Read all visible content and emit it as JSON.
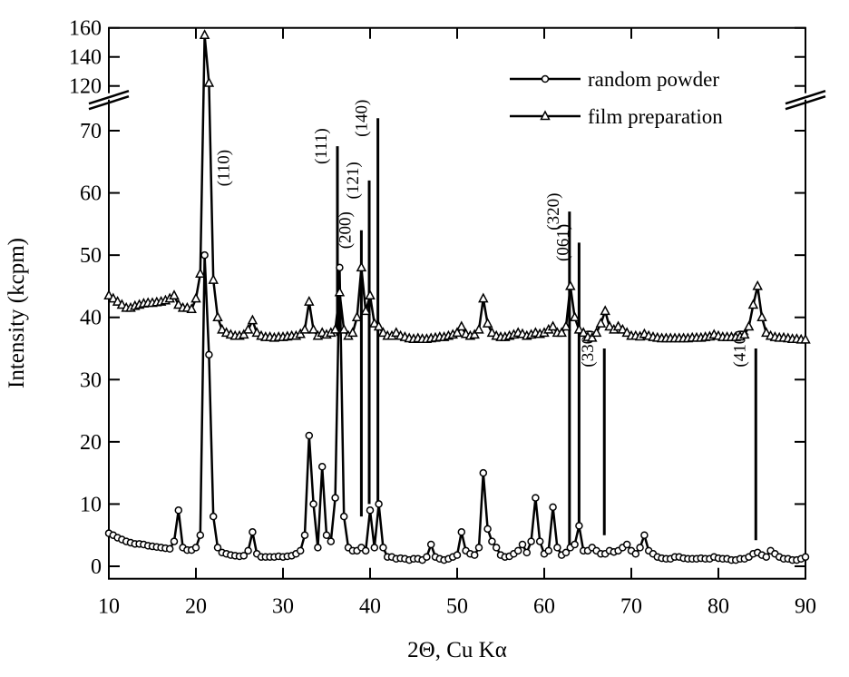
{
  "chart_data": {
    "type": "line",
    "xlabel": "2Θ, Cu Kα",
    "ylabel": "Intensity (kcpm)",
    "xlim": [
      10,
      90
    ],
    "xticks": [
      10,
      20,
      30,
      40,
      50,
      60,
      70,
      80,
      90
    ],
    "ylim": [
      -2,
      160
    ],
    "ybreak": [
      75,
      115
    ],
    "yticks": [
      0,
      10,
      20,
      30,
      40,
      50,
      60,
      70,
      120,
      140,
      160
    ],
    "legend": "upper right",
    "x": [
      10,
      10.5,
      11,
      11.5,
      12,
      12.5,
      13,
      13.5,
      14,
      14.5,
      15,
      15.5,
      16,
      16.5,
      17,
      17.5,
      18,
      18.5,
      19,
      19.5,
      20,
      20.5,
      21,
      21.5,
      22,
      22.5,
      23,
      23.5,
      24,
      24.5,
      25,
      25.5,
      26,
      26.5,
      27,
      27.5,
      28,
      28.5,
      29,
      29.5,
      30,
      30.5,
      31,
      31.5,
      32,
      32.5,
      33,
      33.5,
      34,
      34.5,
      35,
      35.5,
      36,
      36.5,
      37,
      37.5,
      38,
      38.5,
      39,
      39.5,
      40,
      40.5,
      41,
      41.5,
      42,
      42.5,
      43,
      43.5,
      44,
      44.5,
      45,
      45.5,
      46,
      46.5,
      47,
      47.5,
      48,
      48.5,
      49,
      49.5,
      50,
      50.5,
      51,
      51.5,
      52,
      52.5,
      53,
      53.5,
      54,
      54.5,
      55,
      55.5,
      56,
      56.5,
      57,
      57.5,
      58,
      58.5,
      59,
      59.5,
      60,
      60.5,
      61,
      61.5,
      62,
      62.5,
      63,
      63.5,
      64,
      64.5,
      65,
      65.5,
      66,
      66.5,
      67,
      67.5,
      68,
      68.5,
      69,
      69.5,
      70,
      70.5,
      71,
      71.5,
      72,
      72.5,
      73,
      73.5,
      74,
      74.5,
      75,
      75.5,
      76,
      76.5,
      77,
      77.5,
      78,
      78.5,
      79,
      79.5,
      80,
      80.5,
      81,
      81.5,
      82,
      82.5,
      83,
      83.5,
      84,
      84.5,
      85,
      85.5,
      86,
      86.5,
      87,
      87.5,
      88,
      88.5,
      89,
      89.5,
      90
    ],
    "series": [
      {
        "name": "random powder",
        "color": "#000000",
        "marker": "circle",
        "values": [
          5.3,
          5,
          4.6,
          4.3,
          4,
          3.8,
          3.6,
          3.6,
          3.5,
          3.3,
          3.2,
          3.1,
          3,
          2.9,
          2.8,
          4,
          9,
          3,
          2.6,
          2.6,
          3,
          5,
          50,
          34,
          8,
          3,
          2.2,
          2,
          1.8,
          1.7,
          1.6,
          1.7,
          2.5,
          5.5,
          2,
          1.5,
          1.5,
          1.5,
          1.5,
          1.6,
          1.5,
          1.6,
          1.7,
          2,
          2.5,
          5,
          21,
          10,
          3,
          16,
          5,
          4,
          11,
          48,
          8,
          3,
          2.5,
          2.5,
          3,
          2.5,
          9,
          3,
          10,
          3,
          1.5,
          1.5,
          1.2,
          1.3,
          1.2,
          1,
          1.2,
          1.2,
          1,
          1.5,
          3.5,
          1.5,
          1.2,
          1,
          1.2,
          1.5,
          1.8,
          5.5,
          2.5,
          2,
          1.8,
          3,
          15,
          6,
          4,
          3,
          1.8,
          1.5,
          1.6,
          2,
          2.5,
          3.5,
          2.2,
          4,
          11,
          4,
          2,
          2.5,
          9.5,
          3,
          1.8,
          2.2,
          3,
          3.5,
          6.5,
          2.5,
          2.5,
          3,
          2.5,
          2,
          2,
          2.5,
          2.3,
          2.5,
          3,
          3.5,
          2.5,
          2,
          3,
          5,
          2.5,
          2,
          1.5,
          1.3,
          1.2,
          1.2,
          1.5,
          1.5,
          1.3,
          1.2,
          1.2,
          1.2,
          1.3,
          1.2,
          1.2,
          1.5,
          1.3,
          1.2,
          1.2,
          1,
          1,
          1.2,
          1.2,
          1.5,
          2,
          2.2,
          1.8,
          1.5,
          2.5,
          2,
          1.5,
          1.2,
          1.2,
          1,
          1,
          1.2,
          1.5
        ]
      },
      {
        "name": "film preparation",
        "color": "#000000",
        "marker": "triangle",
        "values": [
          43.5,
          43,
          42.5,
          42,
          41.5,
          41.5,
          41.8,
          42,
          42.2,
          42.3,
          42.3,
          42.4,
          42.5,
          42.7,
          43,
          43.5,
          42,
          41.5,
          41.5,
          41.3,
          43,
          47,
          155,
          122,
          46,
          40,
          38,
          37.5,
          37.2,
          37,
          37,
          37.2,
          38,
          39.5,
          37.5,
          37,
          36.8,
          36.8,
          36.7,
          36.8,
          36.8,
          36.9,
          37,
          37,
          37.3,
          38,
          42.5,
          38,
          37,
          37.5,
          37.2,
          37.5,
          38,
          44,
          38,
          37,
          37.5,
          40,
          48,
          41,
          43.5,
          39,
          38.5,
          37.5,
          37,
          37,
          37.5,
          37,
          36.8,
          36.6,
          36.5,
          36.6,
          36.5,
          36.5,
          36.6,
          36.7,
          36.8,
          36.8,
          37,
          37.2,
          37.5,
          38.5,
          37.3,
          37,
          37.2,
          38,
          43,
          39,
          37.5,
          37,
          36.8,
          36.8,
          37,
          37.2,
          37.5,
          37.3,
          37,
          37.2,
          37.5,
          37.3,
          37.5,
          38,
          38.5,
          37.5,
          37.5,
          38.5,
          45,
          40,
          38,
          37.5,
          36.8,
          36.7,
          37.5,
          39,
          41,
          38.5,
          38,
          38.5,
          38,
          37.5,
          37,
          37,
          36.9,
          37.3,
          37,
          36.8,
          36.7,
          36.6,
          36.6,
          36.6,
          36.6,
          36.6,
          36.6,
          36.6,
          36.7,
          36.7,
          36.7,
          36.8,
          36.9,
          37.2,
          37,
          36.8,
          36.8,
          36.8,
          36.8,
          36.9,
          37.2,
          38.5,
          42,
          45,
          40,
          37.5,
          37,
          36.8,
          36.7,
          36.7,
          36.6,
          36.5,
          36.5,
          36.4,
          36.4
        ]
      }
    ],
    "annotations": [
      {
        "label": "(110)",
        "x": 23.8,
        "y": [
          64,
          64
        ]
      },
      {
        "label": "(111)",
        "x": 36.25,
        "y": [
          37,
          67.5
        ]
      },
      {
        "label": "(200)",
        "x": 39.0,
        "y": [
          8,
          54
        ]
      },
      {
        "label": "(121)",
        "x": 39.9,
        "y": [
          10,
          62
        ]
      },
      {
        "label": "(140)",
        "x": 40.9,
        "y": [
          10,
          72
        ]
      },
      {
        "label": "(320)",
        "x": 62.9,
        "y": [
          3.5,
          57
        ]
      },
      {
        "label": "(061)",
        "x": 64.0,
        "y": [
          5.7,
          52
        ]
      },
      {
        "label": "(330)",
        "x": 66.9,
        "y": [
          5,
          35
        ]
      },
      {
        "label": "(410)",
        "x": 84.3,
        "y": [
          4.2,
          35
        ]
      }
    ]
  }
}
